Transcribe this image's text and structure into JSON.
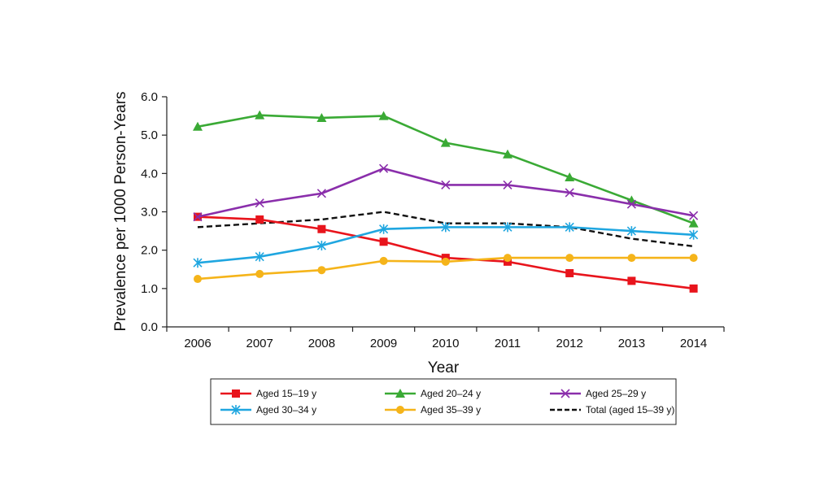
{
  "chart_data": {
    "type": "line",
    "title": "",
    "xlabel": "Year",
    "ylabel": "Prevalence per 1000 Person-Years",
    "ylim": [
      0,
      6
    ],
    "yticks": [
      "0.0",
      "1.0",
      "2.0",
      "3.0",
      "4.0",
      "5.0",
      "6.0"
    ],
    "categories": [
      "2006",
      "2007",
      "2008",
      "2009",
      "2010",
      "2011",
      "2012",
      "2013",
      "2014"
    ],
    "legend_position": "bottom",
    "series": [
      {
        "name": "Aged 15–19 y",
        "color": "#e8141c",
        "marker": "square",
        "dashed": false,
        "values": [
          2.87,
          2.8,
          2.55,
          2.22,
          1.8,
          1.7,
          1.4,
          1.2,
          1.0
        ]
      },
      {
        "name": "Aged 20–24 y",
        "color": "#3aaa35",
        "marker": "triangle",
        "dashed": false,
        "values": [
          5.22,
          5.52,
          5.45,
          5.5,
          4.8,
          4.5,
          3.9,
          3.3,
          2.7
        ]
      },
      {
        "name": "Aged 25–29 y",
        "color": "#8a2eab",
        "marker": "x",
        "dashed": false,
        "values": [
          2.87,
          3.23,
          3.48,
          4.13,
          3.7,
          3.7,
          3.5,
          3.2,
          2.9
        ]
      },
      {
        "name": "Aged 30–34 y",
        "color": "#1fa6e0",
        "marker": "asterisk",
        "dashed": false,
        "values": [
          1.67,
          1.83,
          2.12,
          2.55,
          2.6,
          2.6,
          2.6,
          2.5,
          2.4
        ]
      },
      {
        "name": "Aged 35–39 y",
        "color": "#f5b41a",
        "marker": "circle",
        "dashed": false,
        "values": [
          1.25,
          1.38,
          1.48,
          1.72,
          1.7,
          1.8,
          1.8,
          1.8,
          1.8
        ]
      },
      {
        "name": "Total (aged 15–39 y)",
        "color": "#111111",
        "marker": "none",
        "dashed": true,
        "values": [
          2.6,
          2.7,
          2.8,
          3.0,
          2.7,
          2.7,
          2.6,
          2.3,
          2.1
        ]
      }
    ]
  }
}
